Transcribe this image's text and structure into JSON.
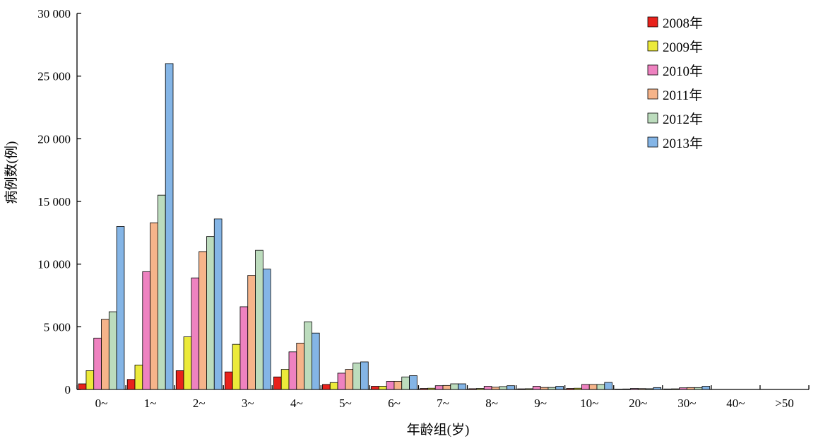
{
  "chart_data": {
    "type": "bar",
    "title": "",
    "xlabel": "年龄组(岁)",
    "ylabel": "病例数(例)",
    "ylim": [
      0,
      30000
    ],
    "y_ticks": [
      0,
      5000,
      10000,
      15000,
      20000,
      25000,
      30000
    ],
    "y_tick_labels": [
      "0",
      "5 000",
      "10 000",
      "15 000",
      "20 000",
      "25 000",
      "30 000"
    ],
    "grid": false,
    "legend_position": "top-right",
    "categories": [
      "0~",
      "1~",
      "2~",
      "3~",
      "4~",
      "5~",
      "6~",
      "7~",
      "8~",
      "9~",
      "10~",
      "20~",
      "30~",
      "40~",
      ">50"
    ],
    "series": [
      {
        "name": "2008年",
        "color": "#e8221c",
        "values": [
          450,
          800,
          1500,
          1400,
          1000,
          400,
          250,
          80,
          60,
          50,
          80,
          30,
          40,
          0,
          0
        ]
      },
      {
        "name": "2009年",
        "color": "#ecea3a",
        "values": [
          1500,
          1950,
          4200,
          3600,
          1600,
          550,
          250,
          100,
          80,
          60,
          100,
          40,
          50,
          0,
          0
        ]
      },
      {
        "name": "2010年",
        "color": "#ee82c0",
        "values": [
          4100,
          9400,
          8900,
          6600,
          3000,
          1300,
          650,
          300,
          250,
          250,
          400,
          80,
          130,
          0,
          0
        ]
      },
      {
        "name": "2011年",
        "color": "#f6b48a",
        "values": [
          5600,
          13300,
          11000,
          9100,
          3700,
          1600,
          650,
          320,
          180,
          160,
          400,
          70,
          150,
          0,
          0
        ]
      },
      {
        "name": "2012年",
        "color": "#bcdcbd",
        "values": [
          6200,
          15500,
          12200,
          11100,
          5400,
          2100,
          1000,
          450,
          230,
          160,
          400,
          60,
          150,
          0,
          0
        ]
      },
      {
        "name": "2013年",
        "color": "#84b5e6",
        "values": [
          13000,
          26000,
          13600,
          9600,
          4500,
          2200,
          1100,
          450,
          300,
          250,
          560,
          150,
          250,
          0,
          0
        ]
      }
    ]
  }
}
